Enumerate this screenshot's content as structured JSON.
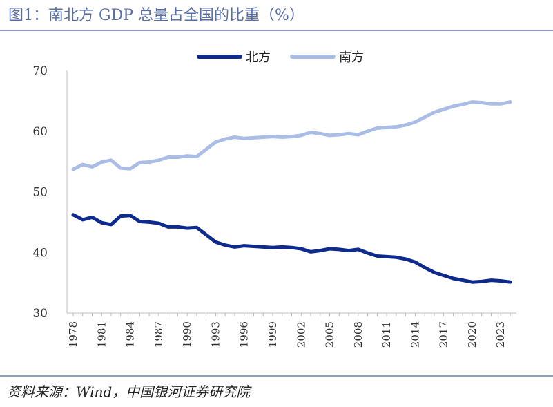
{
  "figure": {
    "title": "图1：南北方 GDP 总量占全国的比重（%）",
    "source": "资料来源：Wind，中国银河证券研究院"
  },
  "colors": {
    "north": "#0d2a8c",
    "south": "#a9bde6",
    "axis": "#bfbfbf",
    "rule": "#8c9cc6",
    "title": "#5a6fa8"
  },
  "chart_data": {
    "type": "line",
    "title": "",
    "xlabel": "",
    "ylabel": "",
    "ylim": [
      30,
      70
    ],
    "yticks": [
      30,
      40,
      50,
      60,
      70
    ],
    "xtick_labels": [
      "1978",
      "1981",
      "1984",
      "1987",
      "1990",
      "1993",
      "1996",
      "1999",
      "2002",
      "2005",
      "2008",
      "2011",
      "2014",
      "2017",
      "2020",
      "2023"
    ],
    "x": [
      1978,
      1979,
      1980,
      1981,
      1982,
      1983,
      1984,
      1985,
      1986,
      1987,
      1988,
      1989,
      1990,
      1991,
      1992,
      1993,
      1994,
      1995,
      1996,
      1997,
      1998,
      1999,
      2000,
      2001,
      2002,
      2003,
      2004,
      2005,
      2006,
      2007,
      2008,
      2009,
      2010,
      2011,
      2012,
      2013,
      2014,
      2015,
      2016,
      2017,
      2018,
      2019,
      2020,
      2021,
      2022,
      2023,
      2024
    ],
    "legend_position": "top-center",
    "series": [
      {
        "name": "北方",
        "key": "north",
        "values": [
          46.2,
          45.4,
          45.8,
          44.9,
          44.6,
          46.0,
          46.1,
          45.1,
          45.0,
          44.8,
          44.2,
          44.2,
          44.0,
          44.1,
          42.9,
          41.7,
          41.2,
          40.9,
          41.1,
          41.0,
          40.9,
          40.8,
          40.9,
          40.8,
          40.6,
          40.1,
          40.3,
          40.6,
          40.5,
          40.3,
          40.5,
          39.9,
          39.4,
          39.3,
          39.2,
          38.9,
          38.4,
          37.5,
          36.7,
          36.2,
          35.7,
          35.4,
          35.1,
          35.2,
          35.4,
          35.3,
          35.1
        ]
      },
      {
        "name": "南方",
        "key": "south",
        "values": [
          53.7,
          54.5,
          54.1,
          54.9,
          55.2,
          53.9,
          53.8,
          54.8,
          54.9,
          55.2,
          55.7,
          55.7,
          55.9,
          55.8,
          57.0,
          58.2,
          58.7,
          59.0,
          58.8,
          58.9,
          59.0,
          59.1,
          59.0,
          59.1,
          59.3,
          59.8,
          59.6,
          59.3,
          59.4,
          59.6,
          59.4,
          60.0,
          60.5,
          60.6,
          60.7,
          61.0,
          61.5,
          62.3,
          63.1,
          63.6,
          64.1,
          64.4,
          64.8,
          64.7,
          64.5,
          64.5,
          64.8
        ]
      }
    ]
  }
}
